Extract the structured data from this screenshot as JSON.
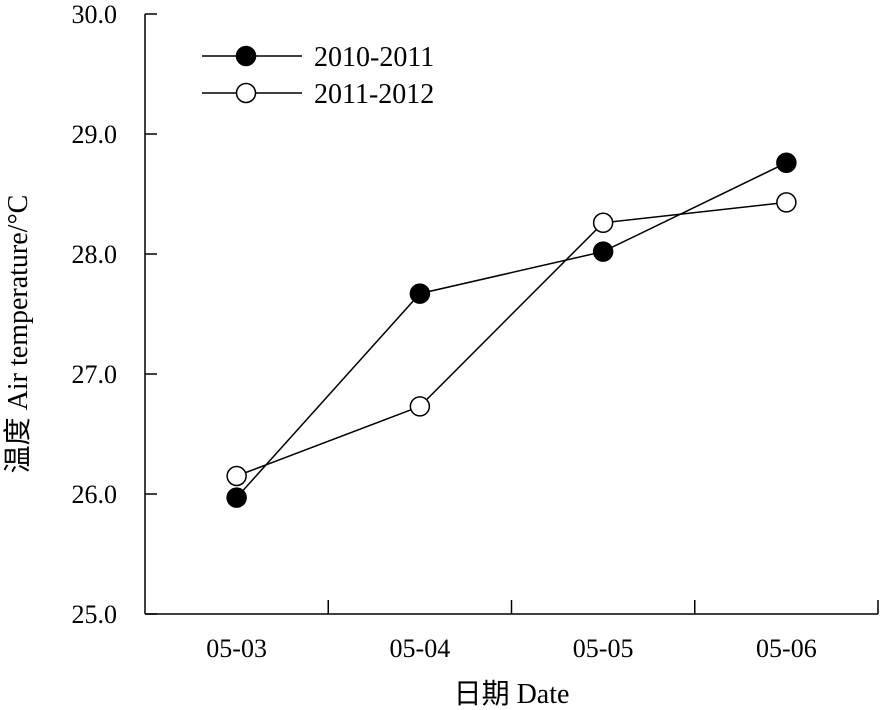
{
  "chart_data": {
    "type": "line",
    "title": "",
    "xlabel": "日期 Date",
    "ylabel": "温度 Air temperature/°C",
    "categories": [
      "05-03",
      "05-04",
      "05-05",
      "05-06"
    ],
    "ylim": [
      25.0,
      30.0
    ],
    "yticks": [
      "25.0",
      "26.0",
      "27.0",
      "28.0",
      "29.0",
      "30.0"
    ],
    "grid": false,
    "legend_position": "top-left",
    "series": [
      {
        "name": "2010-2011",
        "marker": "filled-circle",
        "color": "#000000",
        "values": [
          25.97,
          27.67,
          28.02,
          28.76
        ]
      },
      {
        "name": "2011-2012",
        "marker": "open-circle",
        "color": "#000000",
        "values": [
          26.15,
          26.73,
          28.26,
          28.43
        ]
      }
    ]
  }
}
